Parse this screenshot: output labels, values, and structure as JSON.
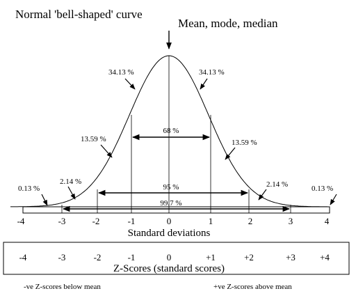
{
  "title": "Normal 'bell-shaped' curve",
  "peak_label": "Mean, mode, median",
  "x_axis_label": "Standard deviations",
  "sd_ticks": [
    "-4",
    "-3",
    "-2",
    "-1",
    "0",
    "1",
    "2",
    "3",
    "4"
  ],
  "z_axis_label": "Z-Scores (standard scores)",
  "z_ticks": [
    "-4",
    "-3",
    "-2",
    "-1",
    "0",
    "+1",
    "+2",
    "+3",
    "+4"
  ],
  "band_labels": {
    "center_left": "34.13 %",
    "center_right": "34.13 %",
    "middle_left": "13.59 %",
    "middle_right": "13.59 %",
    "outer_left": "2.14 %",
    "outer_right": "2.14 %",
    "tail_left": "0.13 %",
    "tail_right": "0.13 %"
  },
  "ranges": {
    "one_sd": "68 %",
    "two_sd": "95 %",
    "three_sd": "99.7 %"
  },
  "notes": {
    "below": "-ve Z-scores below mean",
    "above": "+ve Z-scores above mean"
  },
  "colors": {
    "ink": "#000000",
    "background": "#ffffff"
  }
}
